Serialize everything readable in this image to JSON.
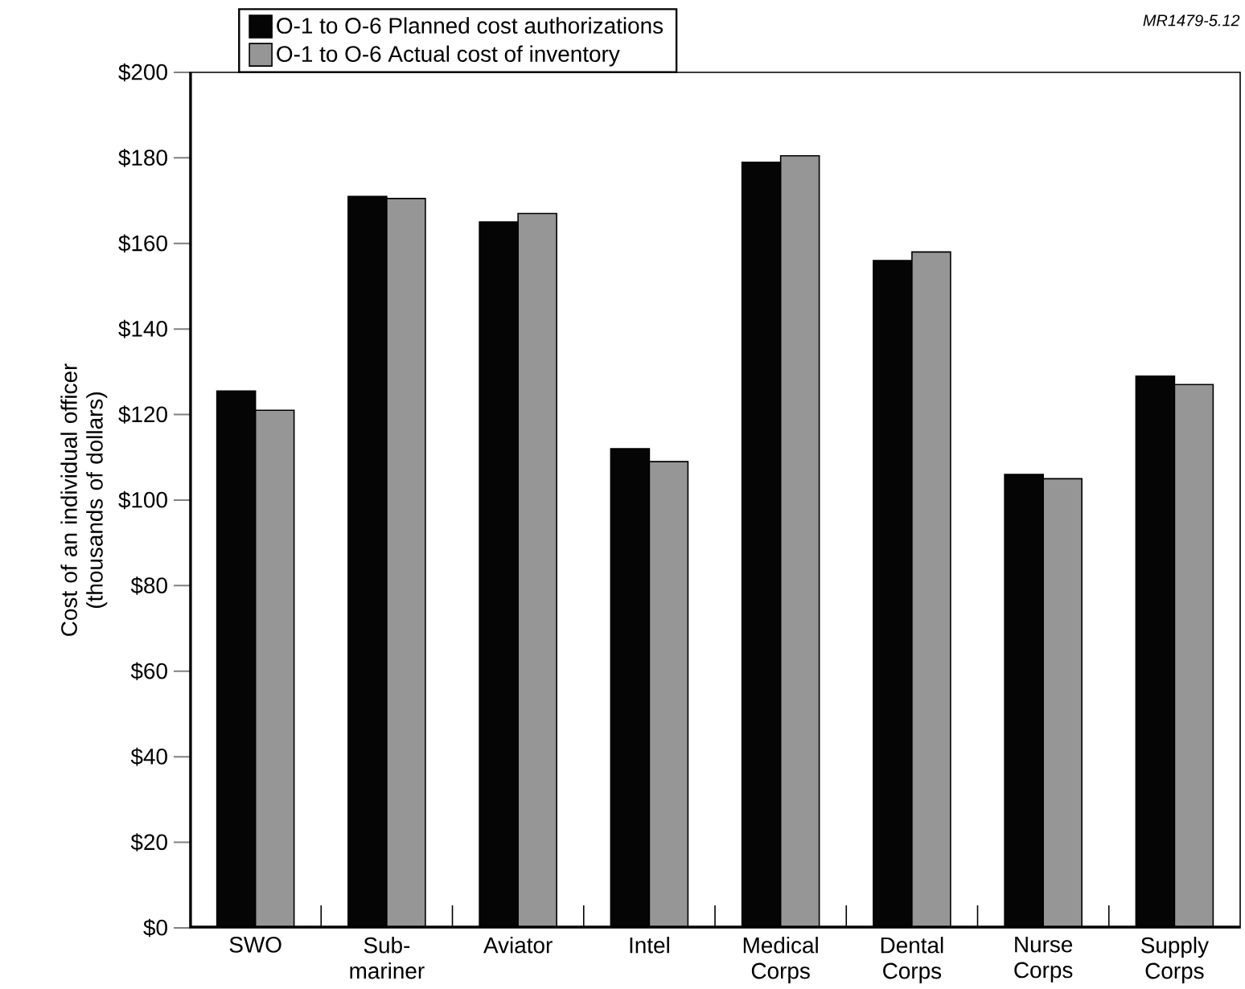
{
  "chart_data": {
    "type": "bar",
    "categories": [
      "SWO",
      "Sub-mariner",
      "Aviator",
      "Intel",
      "Medical Corps",
      "Dental Corps",
      "Nurse Corps",
      "Supply Corps"
    ],
    "series": [
      {
        "name": "O-1 to O-6 Planned cost authorizations",
        "color": "#050505",
        "values": [
          125.5,
          171,
          165,
          112,
          179,
          156,
          106,
          129
        ]
      },
      {
        "name": "O-1 to O-6 Actual cost of inventory",
        "color": "#969696",
        "values": [
          121,
          170.5,
          167,
          109,
          180.5,
          158,
          105,
          127
        ]
      }
    ],
    "ylabel": "Cost of an individual officer (thousands of dollars)",
    "ylim": [
      0,
      200
    ],
    "yticks": [
      {
        "value": 0,
        "label": "$0"
      },
      {
        "value": 20,
        "label": "$20"
      },
      {
        "value": 40,
        "label": "$40"
      },
      {
        "value": 60,
        "label": "$60"
      },
      {
        "value": 80,
        "label": "$80"
      },
      {
        "value": 100,
        "label": "$100"
      },
      {
        "value": 120,
        "label": "$120"
      },
      {
        "value": 140,
        "label": "$140"
      },
      {
        "value": 160,
        "label": "$160"
      },
      {
        "value": 180,
        "label": "$180"
      },
      {
        "value": 200,
        "label": "$200"
      }
    ],
    "annotations": [
      "MR1479-5.12"
    ],
    "legend": "top left",
    "grid": false
  }
}
